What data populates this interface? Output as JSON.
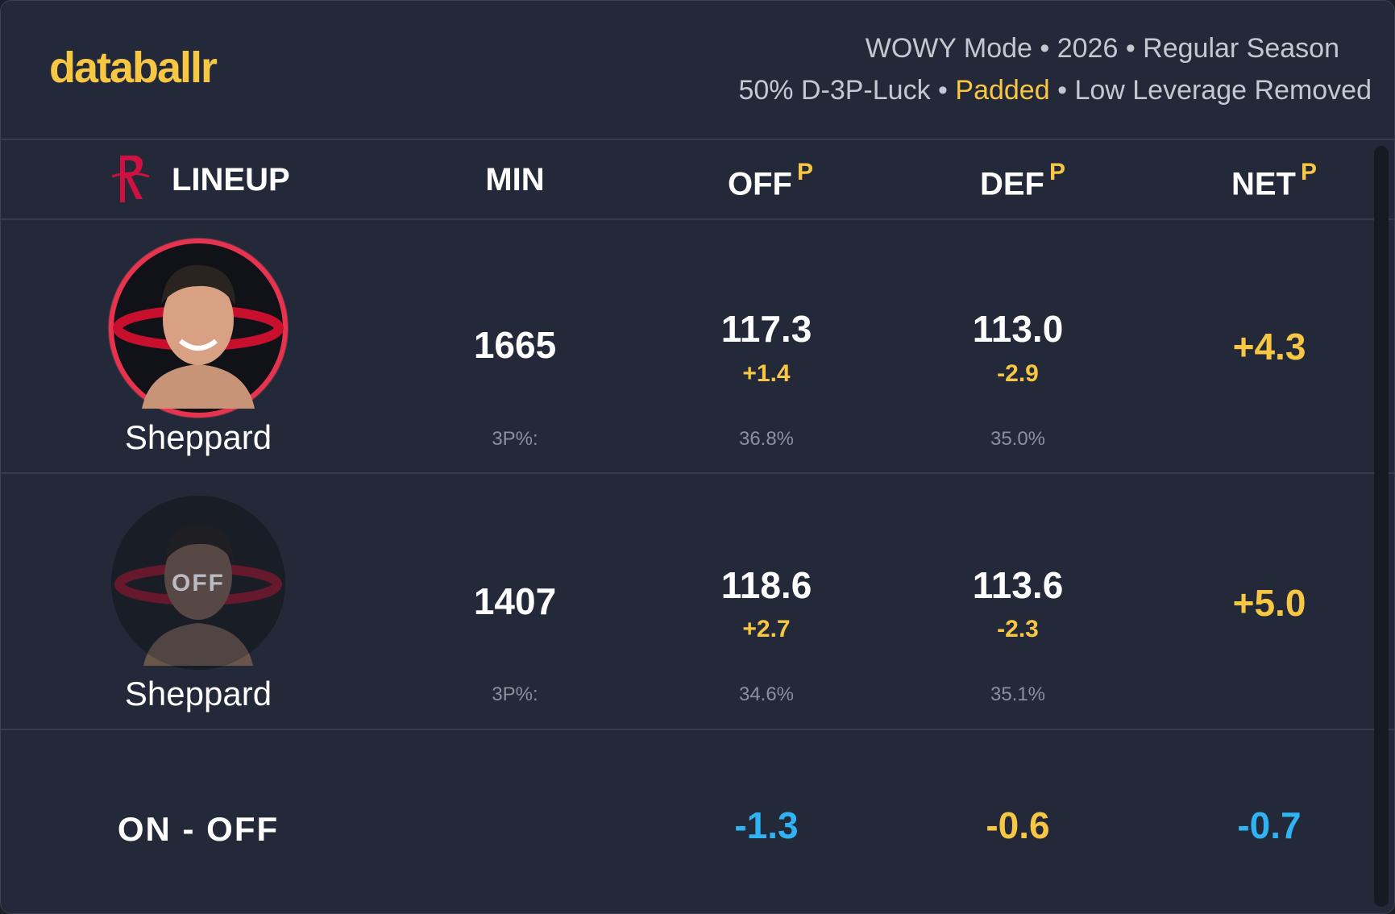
{
  "header": {
    "logo": "databallr",
    "line1": "WOWY Mode • 2026 • Regular Season",
    "line2": {
      "luck": "50% D-3P-Luck",
      "padded": "Padded",
      "leverage": "Low Leverage Removed",
      "separator": "•"
    }
  },
  "columns": {
    "lineup": "LINEUP",
    "min": "MIN",
    "off": "OFF",
    "def": "DEF",
    "net": "NET",
    "superscript": "P"
  },
  "rows": [
    {
      "name": "Sheppard",
      "min": "1665",
      "off": "117.3",
      "off_diff": "+1.4",
      "def": "113.0",
      "def_diff": "-2.9",
      "net": "+4.3",
      "label_3p": "3P%:",
      "off_3p": "36.8%",
      "def_3p": "35.0%"
    },
    {
      "name": "Sheppard",
      "badge": "OFF",
      "min": "1407",
      "off": "118.6",
      "off_diff": "+2.7",
      "def": "113.6",
      "def_diff": "-2.3",
      "net": "+5.0",
      "label_3p": "3P%:",
      "off_3p": "34.6%",
      "def_3p": "35.1%"
    }
  ],
  "on_off": {
    "label": "ON - OFF",
    "off": "-1.3",
    "def": "-0.6",
    "net": "-0.7"
  }
}
